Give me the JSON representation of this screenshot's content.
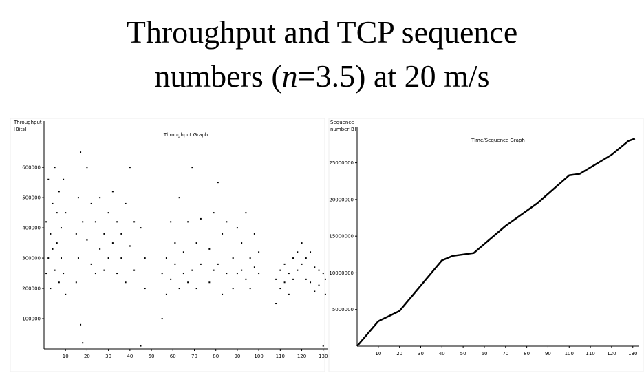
{
  "slide": {
    "title": {
      "line1": "Throughput and TCP sequence",
      "line2": [
        "numbers (",
        "n",
        "=3.5) at 20 m/s"
      ]
    }
  },
  "chart_data": [
    {
      "type": "scatter",
      "title": "Throughput Graph",
      "y_label": [
        "Throughput",
        "[Bits]"
      ],
      "color": "#000000",
      "x": [
        1,
        1,
        2,
        2,
        3,
        3,
        4,
        4,
        5,
        5,
        6,
        6,
        7,
        7,
        8,
        8,
        9,
        9,
        10,
        10,
        15,
        15,
        16,
        16,
        17,
        17,
        18,
        18,
        20,
        20,
        22,
        22,
        24,
        24,
        26,
        26,
        28,
        28,
        30,
        30,
        32,
        32,
        34,
        34,
        36,
        36,
        38,
        38,
        40,
        40,
        42,
        42,
        45,
        45,
        47,
        47,
        55,
        55,
        57,
        57,
        59,
        59,
        61,
        61,
        63,
        63,
        65,
        65,
        67,
        67,
        69,
        69,
        71,
        71,
        73,
        73,
        77,
        77,
        79,
        79,
        81,
        81,
        83,
        83,
        85,
        85,
        88,
        88,
        90,
        90,
        92,
        92,
        94,
        94,
        96,
        96,
        98,
        98,
        100,
        100,
        108,
        108,
        110,
        110,
        112,
        112,
        114,
        114,
        116,
        116,
        118,
        118,
        120,
        120,
        122,
        122,
        124,
        124,
        126,
        126,
        128,
        128,
        130,
        130,
        131,
        131
      ],
      "values": [
        420000,
        250000,
        560000,
        300000,
        380000,
        200000,
        480000,
        330000,
        600000,
        260000,
        350000,
        450000,
        520000,
        220000,
        300000,
        400000,
        560000,
        250000,
        450000,
        180000,
        380000,
        220000,
        500000,
        300000,
        650000,
        80000,
        20000,
        420000,
        360000,
        600000,
        280000,
        480000,
        420000,
        250000,
        330000,
        500000,
        260000,
        380000,
        450000,
        300000,
        350000,
        520000,
        250000,
        420000,
        380000,
        300000,
        480000,
        220000,
        340000,
        600000,
        260000,
        420000,
        400000,
        10000,
        300000,
        200000,
        100000,
        250000,
        300000,
        180000,
        420000,
        230000,
        280000,
        350000,
        500000,
        200000,
        320000,
        250000,
        420000,
        220000,
        260000,
        600000,
        350000,
        200000,
        280000,
        430000,
        330000,
        220000,
        450000,
        260000,
        280000,
        550000,
        380000,
        180000,
        250000,
        420000,
        300000,
        200000,
        400000,
        250000,
        260000,
        350000,
        450000,
        230000,
        300000,
        200000,
        380000,
        270000,
        250000,
        320000,
        150000,
        230000,
        260000,
        200000,
        220000,
        280000,
        180000,
        250000,
        300000,
        230000,
        260000,
        320000,
        350000,
        280000,
        230000,
        300000,
        320000,
        220000,
        270000,
        190000,
        210000,
        260000,
        250000,
        10000,
        230000,
        180000
      ],
      "xlim": [
        0,
        132
      ],
      "xticks": [
        10,
        20,
        30,
        40,
        50,
        60,
        70,
        80,
        90,
        100,
        110,
        120,
        130
      ],
      "ylim": [
        0,
        730000
      ],
      "yticks": [
        100000,
        200000,
        300000,
        400000,
        500000,
        600000
      ]
    },
    {
      "type": "line",
      "title": "Time/Sequence Graph",
      "y_label": [
        "Sequence",
        "number[B]"
      ],
      "color": "#000000",
      "x": [
        0,
        10,
        20,
        40,
        45,
        55,
        70,
        85,
        100,
        105,
        120,
        128,
        131
      ],
      "values": [
        0,
        3400000,
        4800000,
        11700000,
        12300000,
        12700000,
        16400000,
        19500000,
        23300000,
        23500000,
        26100000,
        28000000,
        28300000
      ],
      "xlim": [
        0,
        133
      ],
      "xticks": [
        10,
        20,
        30,
        40,
        50,
        60,
        70,
        80,
        90,
        100,
        110,
        120,
        130
      ],
      "ylim": [
        0,
        29000000
      ],
      "yticks": [
        5000000,
        10000000,
        15000000,
        20000000,
        25000000
      ]
    }
  ]
}
